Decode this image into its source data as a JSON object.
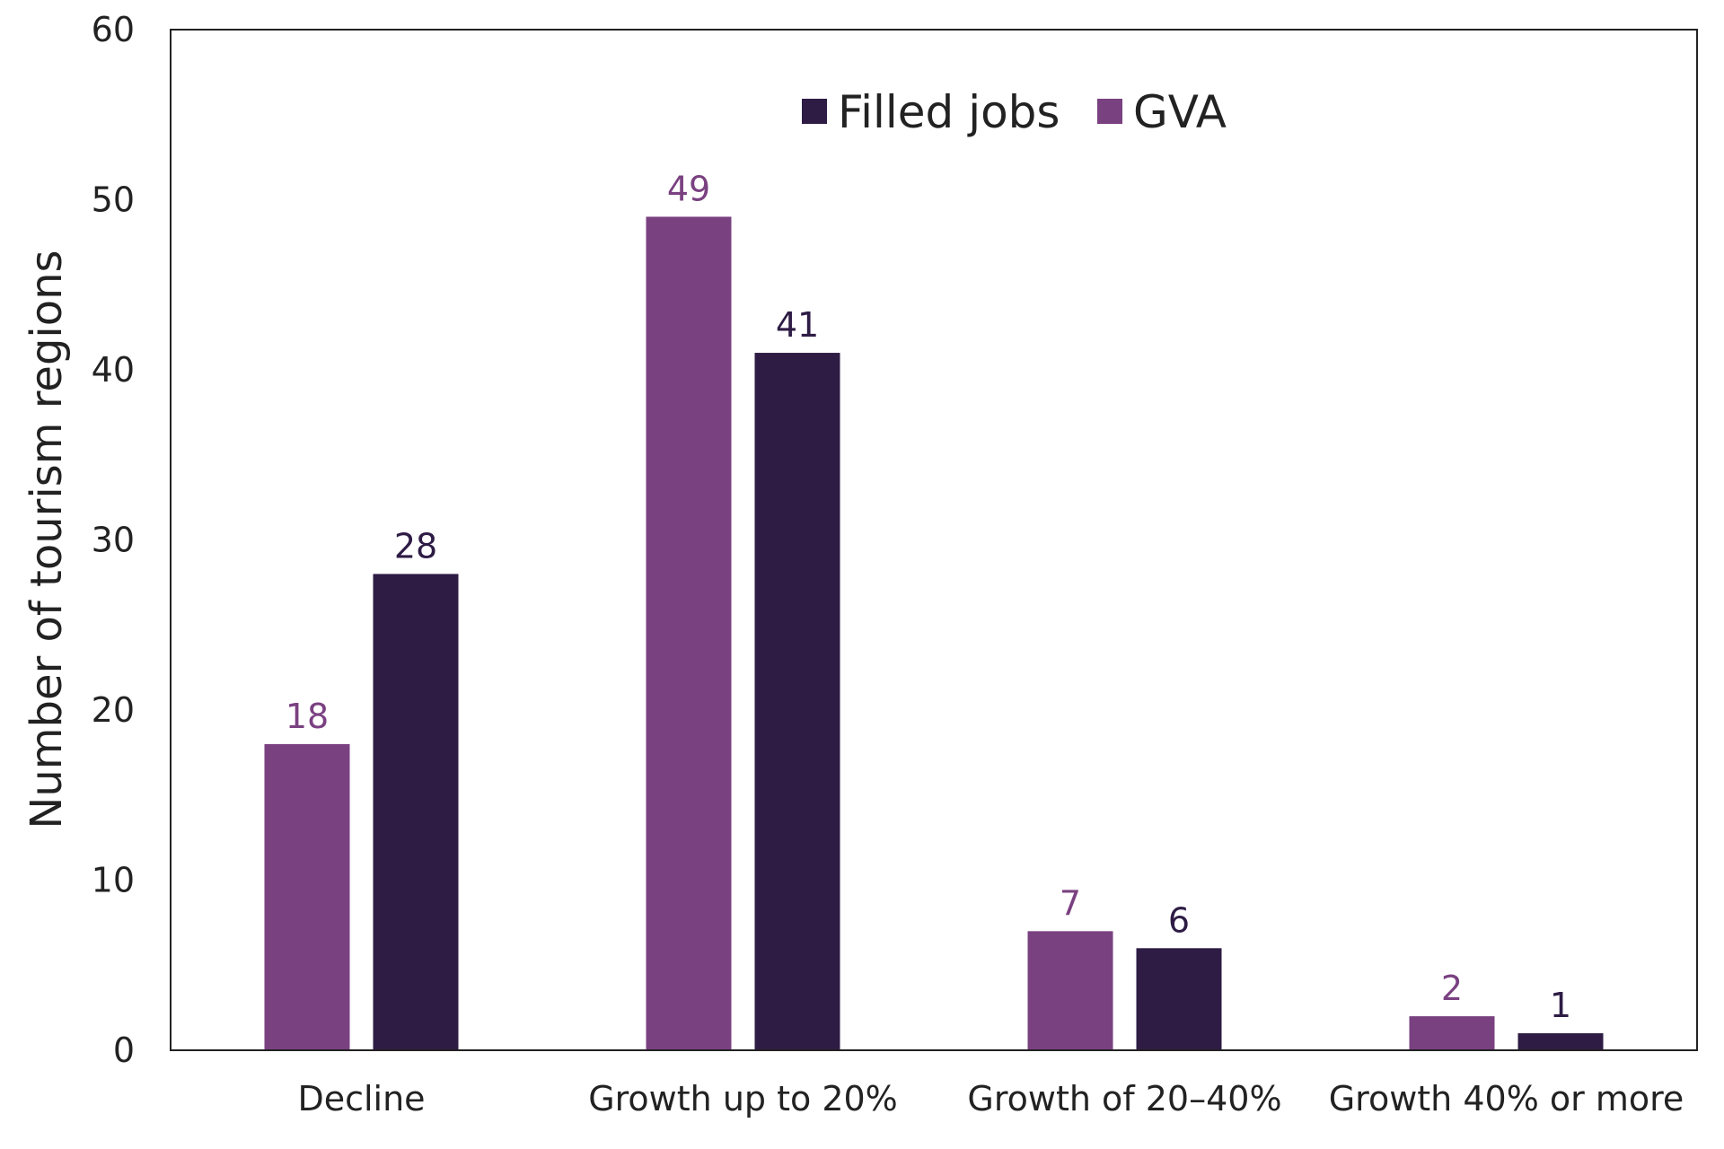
{
  "chart_data": {
    "type": "bar",
    "title": "",
    "xlabel": "",
    "ylabel": "Number of tourism regions",
    "ylim": [
      0,
      60
    ],
    "yticks": [
      0,
      10,
      20,
      30,
      40,
      50,
      60
    ],
    "grid": false,
    "legend_position": "top-center",
    "categories": [
      "Decline",
      "Growth up to 20%",
      "Growth of 20–40%",
      "Growth 40% or more"
    ],
    "series": [
      {
        "name": "GVA",
        "color": "#7a4181",
        "values": [
          18,
          49,
          7,
          2
        ]
      },
      {
        "name": "Filled jobs",
        "color": "#2e1c45",
        "values": [
          28,
          41,
          6,
          1
        ]
      }
    ],
    "legend_order": [
      "Filled jobs",
      "GVA"
    ]
  }
}
